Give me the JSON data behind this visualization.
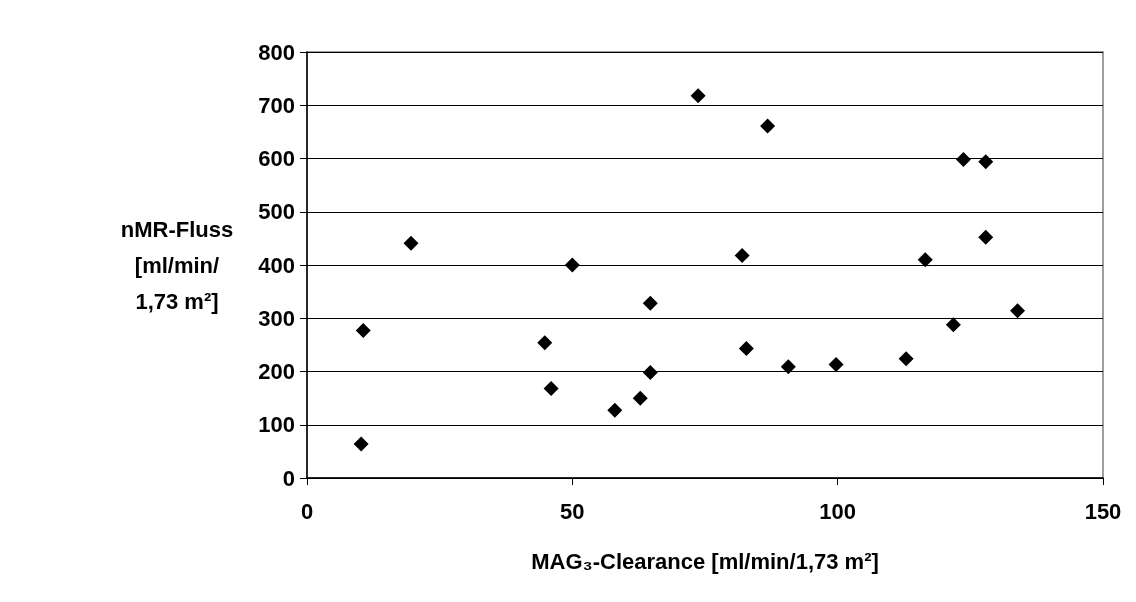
{
  "chart_data": {
    "type": "scatter",
    "xlabel": "MAG₃-Clearance [ml/min/1,73 m²]",
    "ylabel": "nMR-Fluss\n[ml/min/\n1,73 m²]",
    "x": [
      73.7,
      19.6,
      50,
      64.7,
      10.6,
      44.8,
      64.7,
      46,
      62.8,
      58,
      10.2,
      86.8,
      123.7,
      127.9,
      127.9,
      82,
      116.5,
      133.9,
      121.8,
      82.8,
      112.9,
      90.7,
      99.7
    ],
    "series": [
      {
        "color": "#000000",
        "values": [
          718,
          441,
          400,
          328,
          277,
          254,
          198,
          168,
          150,
          127,
          64,
          661,
          598,
          594,
          452,
          418,
          410,
          314,
          288,
          243,
          224,
          209,
          213
        ]
      }
    ],
    "xlim": [
      0,
      150
    ],
    "xticks": [
      0,
      50,
      100,
      150
    ],
    "ylim": [
      0,
      800
    ],
    "yticks": [
      0,
      100,
      200,
      300,
      400,
      500,
      600,
      700,
      800
    ],
    "grid": "y",
    "marker": "diamond"
  }
}
